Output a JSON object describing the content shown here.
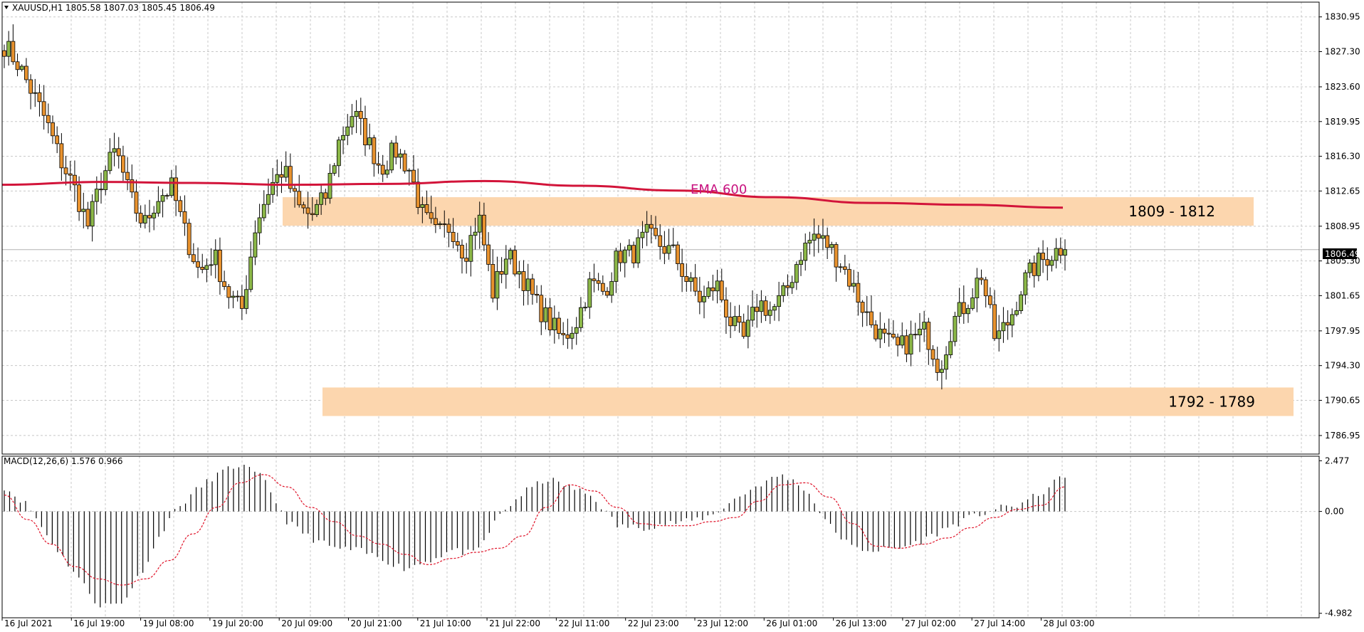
{
  "header": {
    "symbol_label": "XAUUSD,H1",
    "ohlc_label": "1805.58 1807.03 1805.45 1806.49"
  },
  "macd_header": "MACD(12,26,6) 1.576 0.966",
  "current_price_label": "1806.49",
  "colors": {
    "bull_fill": "#8cb848",
    "bear_fill": "#e8922e",
    "ema": "#d2143a",
    "zone": "#fcd6ae",
    "signal": "#e0142a",
    "grid": "#c8c8c8"
  },
  "chart_data": [
    {
      "type": "candlestick",
      "symbol": "XAUUSD",
      "timeframe": "H1",
      "ylim": [
        1785.0,
        1832.5
      ],
      "y_ticks": [
        "1830.95",
        "1827.30",
        "1823.60",
        "1819.95",
        "1816.30",
        "1812.65",
        "1808.95",
        "1805.30",
        "1801.65",
        "1797.95",
        "1794.30",
        "1790.65",
        "1786.95"
      ],
      "x_ticks": [
        "16 Jul 2021",
        "16 Jul 19:00",
        "19 Jul 08:00",
        "19 Jul 20:00",
        "20 Jul 09:00",
        "20 Jul 21:00",
        "21 Jul 10:00",
        "21 Jul 22:00",
        "22 Jul 11:00",
        "22 Jul 23:00",
        "23 Jul 12:00",
        "26 Jul 01:00",
        "26 Jul 13:00",
        "27 Jul 02:00",
        "27 Jul 14:00",
        "28 Jul 03:00"
      ],
      "current_price": 1806.49,
      "ema_label": "EMA 600",
      "zones": [
        {
          "label": "1809 - 1812",
          "from": 1809,
          "to": 1812
        },
        {
          "label": "1792 - 1789",
          "from": 1789,
          "to": 1792
        }
      ],
      "anchors": [
        1828,
        1826,
        1823,
        1820,
        1816,
        1813,
        1809,
        1814,
        1817,
        1812,
        1809,
        1812,
        1813,
        1808,
        1804,
        1806,
        1802,
        1800,
        1809,
        1813,
        1815,
        1811,
        1810,
        1812,
        1818,
        1821,
        1818,
        1815,
        1817,
        1815,
        1810,
        1808,
        1809,
        1806,
        1810,
        1802,
        1806,
        1804,
        1801,
        1799,
        1797,
        1799,
        1803,
        1802,
        1806,
        1806,
        1808,
        1807,
        1806,
        1803,
        1801,
        1803,
        1799,
        1797,
        1801,
        1800,
        1802,
        1806,
        1808,
        1807,
        1805,
        1802,
        1799,
        1797,
        1796,
        1797,
        1798,
        1794,
        1799,
        1801,
        1804,
        1797,
        1799,
        1803,
        1805,
        1806,
        1807
      ],
      "ema": [
        1813.3,
        1813.6,
        1813.5,
        1813.3,
        1813.4,
        1813.7,
        1813.2,
        1812.7,
        1812.0,
        1811.4,
        1811.2,
        1810.9
      ],
      "macd_hist": [
        1.2,
        0.3,
        -1.5,
        -3.0,
        -4.6,
        -4.5,
        -2.6,
        -0.3,
        0.9,
        1.8,
        2.3,
        1.6,
        -0.5,
        -1.3,
        -1.8,
        -1.9,
        -2.3,
        -2.8,
        -2.4,
        -1.9,
        -2.1,
        -0.2,
        0.9,
        1.6,
        1.2,
        0.7,
        -0.7,
        -0.8,
        -0.6,
        -0.5,
        -0.2,
        0.6,
        1.3,
        1.8,
        1.1,
        -0.7,
        -1.8,
        -1.9,
        -1.8,
        -1.4,
        -0.8,
        -0.3,
        0.1,
        0.3,
        0.9,
        1.8
      ],
      "macd_signal": [
        0.8,
        -0.4,
        -1.6,
        -2.7,
        -3.3,
        -3.6,
        -3.3,
        -2.4,
        -1.1,
        0.2,
        1.4,
        1.8,
        1.2,
        0.2,
        -0.5,
        -1.2,
        -1.6,
        -2.1,
        -2.6,
        -2.3,
        -2.0,
        -1.8,
        -1.2,
        0.2,
        1.3,
        1.0,
        0.2,
        -0.6,
        -0.7,
        -0.7,
        -0.5,
        -0.3,
        0.5,
        1.3,
        1.4,
        0.7,
        -0.6,
        -1.7,
        -1.8,
        -1.6,
        -1.3,
        -0.8,
        -0.3,
        0.1,
        0.3,
        1.2
      ],
      "macd_ylim": [
        -5.2,
        2.7
      ],
      "macd_y_ticks": [
        "2.477",
        "0.00",
        "-4.982"
      ]
    }
  ]
}
